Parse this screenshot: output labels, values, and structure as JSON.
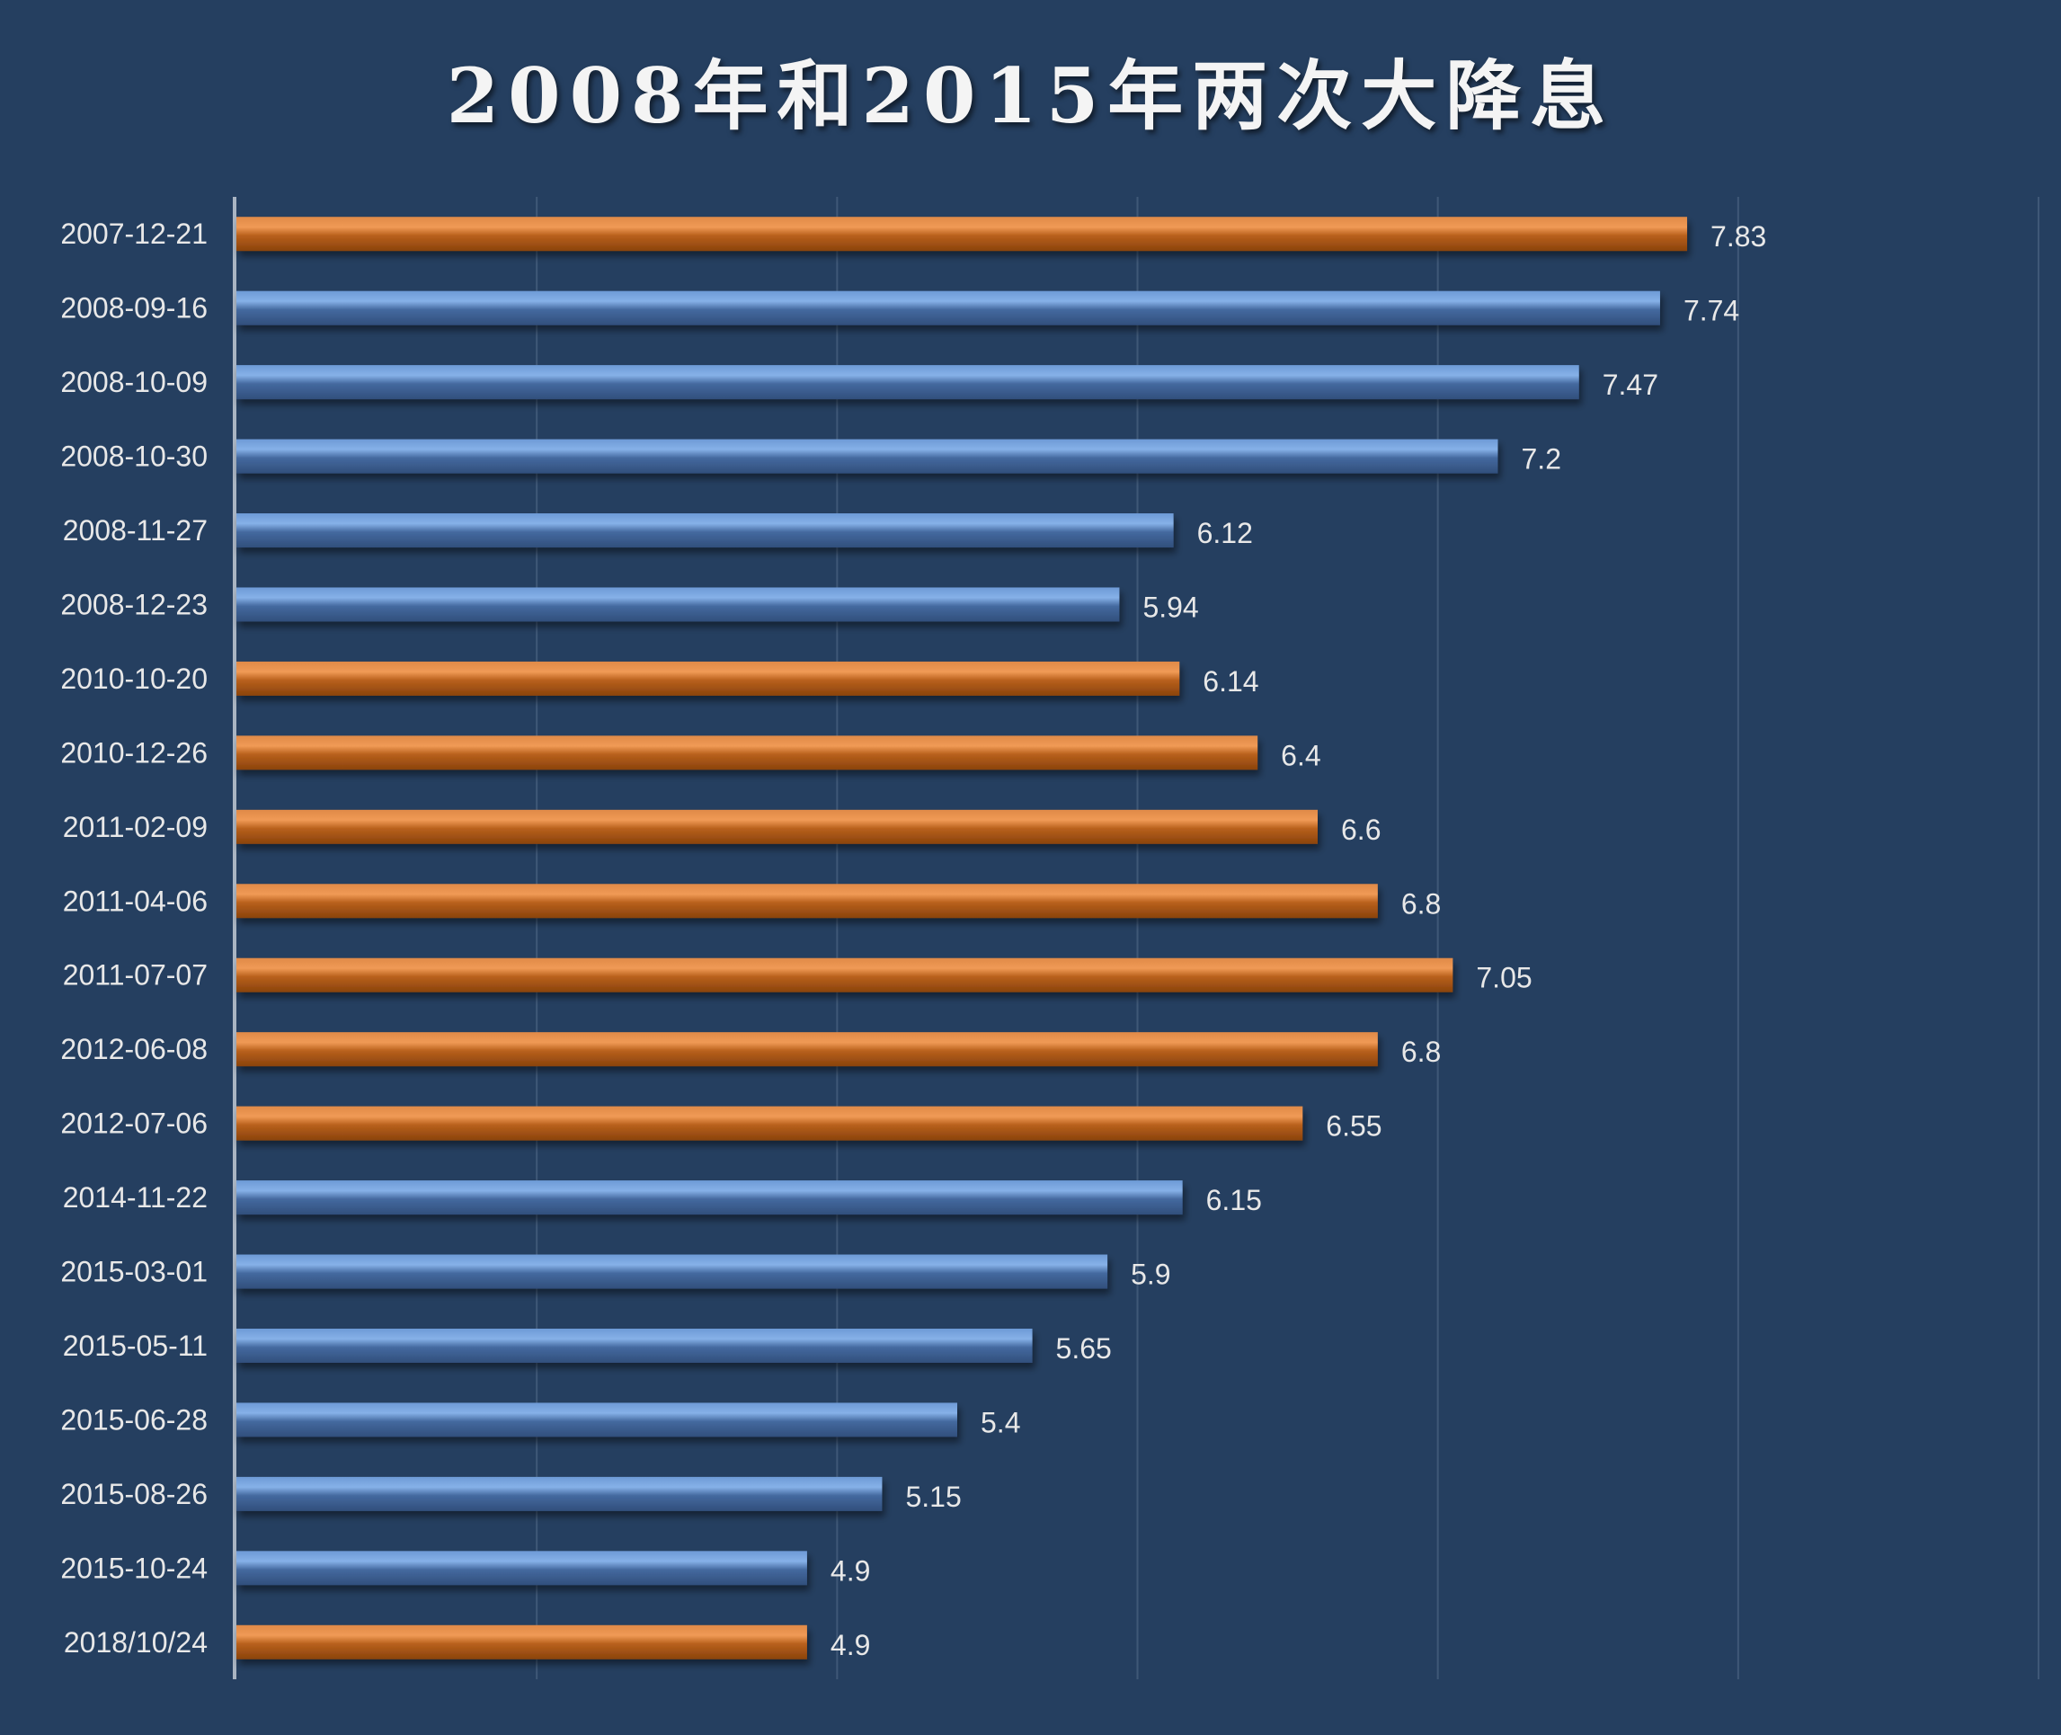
{
  "chart_data": {
    "type": "bar",
    "orientation": "horizontal",
    "title": "2008年和2015年两次大降息",
    "xlabel": "",
    "ylabel": "",
    "xlim": [
      3,
      9
    ],
    "grid": true,
    "legend": "none",
    "categories": [
      "2007-12-21",
      "2008-09-16",
      "2008-10-09",
      "2008-10-30",
      "2008-11-27",
      "2008-12-23",
      "2010-10-20",
      "2010-12-26",
      "2011-02-09",
      "2011-04-06",
      "2011-07-07",
      "2012-06-08",
      "2012-07-06",
      "2014-11-22",
      "2015-03-01",
      "2015-05-11",
      "2015-06-28",
      "2015-08-26",
      "2015-10-24",
      "2018/10/24"
    ],
    "values": [
      7.83,
      7.74,
      7.47,
      7.2,
      6.12,
      5.94,
      6.14,
      6.4,
      6.6,
      6.8,
      7.05,
      6.8,
      6.55,
      6.15,
      5.9,
      5.65,
      5.4,
      5.15,
      4.9,
      4.9
    ],
    "value_labels": [
      "7.83",
      "7.74",
      "7.47",
      "7.2",
      "6.12",
      "5.94",
      "6.14",
      "6.4",
      "6.6",
      "6.8",
      "7.05",
      "6.8",
      "6.55",
      "6.15",
      "5.9",
      "5.65",
      "5.4",
      "5.15",
      "4.9",
      "4.9"
    ],
    "bar_colors": [
      "orange",
      "blue",
      "blue",
      "blue",
      "blue",
      "blue",
      "orange",
      "orange",
      "orange",
      "orange",
      "orange",
      "orange",
      "orange",
      "blue",
      "blue",
      "blue",
      "blue",
      "blue",
      "blue",
      "orange"
    ],
    "colors": {
      "orange": "#c0621a",
      "blue": "#4f7fbf",
      "background": "#253f60"
    }
  }
}
